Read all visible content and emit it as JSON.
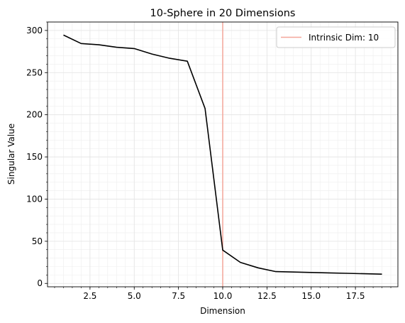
{
  "chart_data": {
    "type": "line",
    "title": "10-Sphere in 20 Dimensions",
    "xlabel": "Dimension",
    "ylabel": "Singular Value",
    "xlim": [
      0.1,
      19.9
    ],
    "ylim": [
      -4,
      310
    ],
    "xticks": [
      2.5,
      5.0,
      7.5,
      10.0,
      12.5,
      15.0,
      17.5
    ],
    "xtick_labels": [
      "2.5",
      "5.0",
      "7.5",
      "10.0",
      "12.5",
      "15.0",
      "17.5"
    ],
    "yticks": [
      0,
      50,
      100,
      150,
      200,
      250,
      300
    ],
    "ytick_labels": [
      "0",
      "50",
      "100",
      "150",
      "200",
      "250",
      "300"
    ],
    "grid": true,
    "series": [
      {
        "color": "#000000",
        "x": [
          1,
          2,
          3,
          4,
          5,
          6,
          7,
          8,
          9,
          10,
          11,
          12,
          13,
          14,
          15,
          16,
          17,
          18,
          19
        ],
        "values": [
          294.5,
          284.5,
          283,
          280,
          278.5,
          272,
          267,
          263.5,
          207.5,
          39.5,
          25,
          18.5,
          14,
          13.5,
          13,
          12.5,
          12,
          11.5,
          11
        ]
      }
    ],
    "vline": {
      "x": 10,
      "color": "#f4a69a",
      "label": "Intrinsic Dim: 10"
    },
    "legend": {
      "placement": "top-right",
      "entries": [
        "Intrinsic Dim: 10"
      ]
    }
  }
}
